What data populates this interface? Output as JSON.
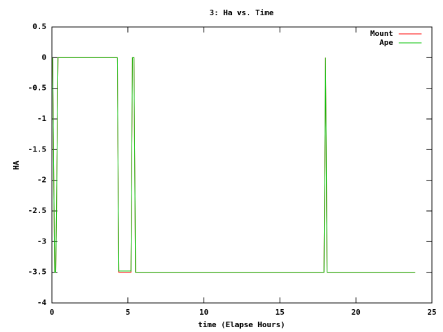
{
  "chart_data": {
    "type": "line",
    "title": "3: Ha vs. Time",
    "x_label": "time (Elapse Hours)",
    "y_label": "HA",
    "x": [
      0.05,
      0.18,
      0.25,
      0.3,
      0.4,
      4.3,
      4.4,
      5.2,
      5.3,
      5.4,
      5.5,
      17.9,
      18.0,
      18.1,
      23.9
    ],
    "series": [
      {
        "name": "Mount",
        "color": "#ff0000",
        "values": [
          0,
          -3.5,
          -3.5,
          -2.5,
          0,
          0,
          -3.5,
          -3.5,
          0,
          0,
          -3.5,
          -3.5,
          0,
          -3.5,
          -3.5
        ]
      },
      {
        "name": "Ape",
        "color": "#00c000",
        "values": [
          0,
          -3.5,
          -3.5,
          -2.5,
          0,
          0,
          -3.48,
          -3.48,
          0,
          0,
          -3.5,
          -3.5,
          0,
          -3.5,
          -3.5
        ]
      }
    ],
    "xlim": [
      0,
      25
    ],
    "ylim": [
      -4,
      0.5
    ],
    "xticks": [
      0,
      5,
      10,
      15,
      20,
      25
    ],
    "yticks": [
      0.5,
      0,
      -0.5,
      -1,
      -1.5,
      -2,
      -2.5,
      -3,
      -3.5,
      -4
    ],
    "legend": "top-right"
  }
}
